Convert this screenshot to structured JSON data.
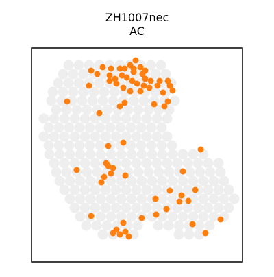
{
  "chart_data": {
    "type": "scatter",
    "title": "ZH1007nec",
    "subtitle": "AC",
    "xlim": [
      0,
      308
    ],
    "ylim": [
      312,
      0
    ],
    "series": [
      {
        "color": "#eeeeee",
        "x": [
          54,
          69,
          84,
          99,
          114,
          129,
          144,
          159,
          174,
          189,
          46,
          61,
          76,
          91,
          106,
          121,
          136,
          151,
          166,
          181,
          196,
          39,
          54,
          69,
          84,
          99,
          114,
          129,
          144,
          159,
          174,
          189,
          204,
          31,
          46,
          61,
          76,
          91,
          106,
          121,
          136,
          151,
          166,
          181,
          196,
          29,
          44,
          59,
          74,
          89,
          104,
          119,
          134,
          149,
          164,
          179,
          194,
          209,
          36,
          51,
          66,
          81,
          96,
          111,
          126,
          141,
          156,
          171,
          186,
          201,
          18,
          33,
          48,
          63,
          78,
          93,
          108,
          123,
          138,
          153,
          168,
          183,
          198,
          25,
          40,
          55,
          70,
          85,
          100,
          115,
          130,
          145,
          160,
          175,
          190,
          18,
          33,
          48,
          63,
          78,
          93,
          108,
          123,
          138,
          153,
          168,
          183,
          198,
          25,
          40,
          55,
          70,
          85,
          100,
          115,
          130,
          145,
          160,
          175,
          190,
          205,
          26,
          41,
          56,
          71,
          86,
          101,
          116,
          131,
          146,
          161,
          176,
          191,
          206,
          221,
          236,
          251,
          33,
          48,
          63,
          78,
          93,
          108,
          123,
          138,
          153,
          168,
          183,
          198,
          213,
          228,
          243,
          258,
          273,
          36,
          51,
          66,
          81,
          96,
          111,
          126,
          141,
          156,
          171,
          186,
          201,
          216,
          231,
          246,
          261,
          276,
          41,
          56,
          71,
          86,
          101,
          116,
          131,
          146,
          161,
          176,
          191,
          206,
          221,
          236,
          251,
          266,
          281,
          48,
          63,
          78,
          93,
          108,
          123,
          138,
          153,
          168,
          183,
          198,
          213,
          228,
          243,
          258,
          273,
          288,
          56,
          71,
          86,
          101,
          116,
          131,
          146,
          161,
          176,
          191,
          206,
          221,
          236,
          251,
          266,
          281,
          296,
          63,
          78,
          93,
          108,
          123,
          138,
          153,
          168,
          183,
          198,
          213,
          228,
          243,
          258,
          273,
          288,
          71,
          86,
          101,
          116,
          131,
          146,
          161,
          176,
          191,
          206,
          221,
          236,
          251,
          266,
          281,
          80,
          95,
          110,
          125,
          140,
          155,
          185,
          200,
          215,
          230,
          245,
          260,
          104,
          119,
          134,
          149,
          215,
          230,
          245
        ],
        "values": [
          25,
          25,
          25,
          25,
          25,
          25,
          25,
          25,
          25,
          25,
          38,
          38,
          38,
          38,
          38,
          38,
          38,
          38,
          38,
          38,
          38,
          51,
          51,
          51,
          51,
          51,
          51,
          51,
          51,
          51,
          51,
          51,
          51,
          64,
          64,
          64,
          64,
          64,
          64,
          64,
          64,
          64,
          64,
          64,
          64,
          77,
          77,
          77,
          77,
          77,
          77,
          77,
          77,
          77,
          77,
          77,
          77,
          77,
          90,
          90,
          90,
          90,
          90,
          90,
          90,
          90,
          90,
          90,
          90,
          90,
          103,
          103,
          103,
          103,
          103,
          103,
          103,
          103,
          103,
          103,
          103,
          103,
          103,
          116,
          116,
          116,
          116,
          116,
          116,
          116,
          116,
          116,
          116,
          116,
          116,
          129,
          129,
          129,
          129,
          129,
          129,
          129,
          129,
          129,
          129,
          129,
          129,
          129,
          142,
          142,
          142,
          142,
          142,
          142,
          142,
          142,
          142,
          142,
          142,
          142,
          142,
          155,
          155,
          155,
          155,
          155,
          155,
          155,
          155,
          155,
          155,
          155,
          155,
          155,
          155,
          155,
          155,
          168,
          168,
          168,
          168,
          168,
          168,
          168,
          168,
          168,
          168,
          168,
          168,
          168,
          168,
          168,
          168,
          168,
          181,
          181,
          181,
          181,
          181,
          181,
          181,
          181,
          181,
          181,
          181,
          181,
          181,
          181,
          181,
          181,
          181,
          194,
          194,
          194,
          194,
          194,
          194,
          194,
          194,
          194,
          194,
          194,
          194,
          194,
          194,
          194,
          194,
          194,
          207,
          207,
          207,
          207,
          207,
          207,
          207,
          207,
          207,
          207,
          207,
          207,
          207,
          207,
          207,
          207,
          207,
          220,
          220,
          220,
          220,
          220,
          220,
          220,
          220,
          220,
          220,
          220,
          220,
          220,
          220,
          220,
          220,
          220,
          233,
          233,
          233,
          233,
          233,
          233,
          233,
          233,
          233,
          233,
          233,
          233,
          233,
          233,
          233,
          233,
          246,
          246,
          246,
          246,
          246,
          246,
          246,
          246,
          246,
          246,
          246,
          246,
          246,
          246,
          246,
          259,
          259,
          259,
          259,
          259,
          259,
          259,
          259,
          259,
          259,
          259,
          259,
          272,
          272,
          272,
          272,
          272,
          272,
          272
        ]
      },
      {
        "color": "#ff7f0e",
        "x": [
          152,
          144,
          159,
          136,
          166,
          149,
          129,
          116,
          104,
          87,
          96,
          114,
          122,
          132,
          139,
          147,
          154,
          164,
          172,
          159,
          144,
          134,
          124,
          114,
          84,
          187,
          199,
          202,
          206,
          192,
          184,
          174,
          166,
          199,
          194,
          179,
          136,
          129,
          52,
          99,
          112,
          134,
          247,
          221,
          66,
          109,
          119,
          116,
          106,
          102,
          112,
          137,
          202,
          239,
          219,
          216,
          229,
          181,
          197,
          182,
          161,
          87,
          134,
          137,
          129,
          119,
          142,
          124,
          235,
          276,
          254,
          149,
          162
        ],
        "values": [
          18,
          25,
          28,
          30,
          33,
          35,
          30,
          30,
          28,
          33,
          38,
          40,
          45,
          40,
          43,
          48,
          52,
          55,
          58,
          63,
          63,
          58,
          52,
          48,
          55,
          48,
          48,
          55,
          62,
          65,
          55,
          48,
          45,
          78,
          85,
          82,
          80,
          85,
          78,
          95,
          143,
          138,
          148,
          180,
          178,
          168,
          175,
          183,
          188,
          196,
          172,
          186,
          208,
          207,
          215,
          224,
          223,
          220,
          235,
          243,
          248,
          245,
          255,
          268,
          272,
          270,
          275,
          265,
          257,
          250,
          270,
          30,
          38
        ]
      }
    ]
  }
}
